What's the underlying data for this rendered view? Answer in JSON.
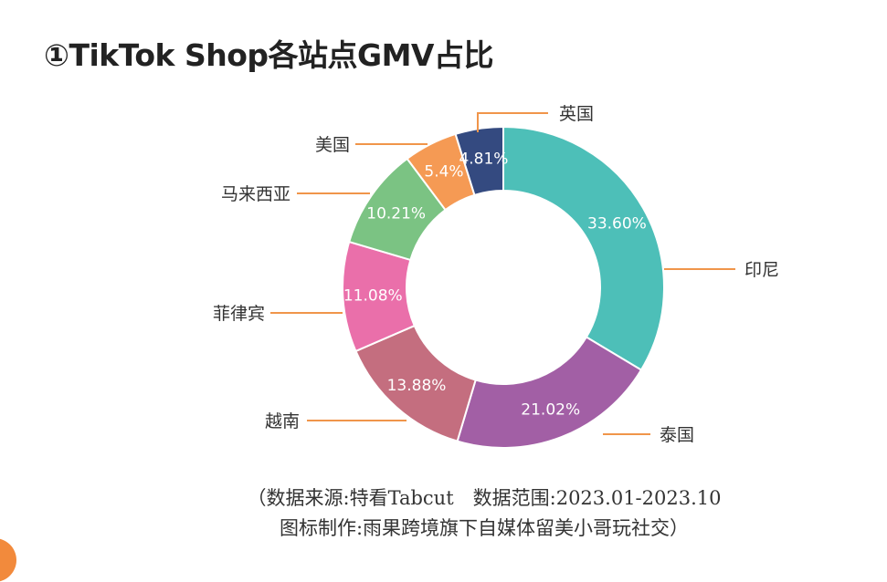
{
  "title": "①TikTok Shop各站点GMV占比",
  "source_line1": "（数据来源:特看Tabcut　数据范围:2023.01-2023.10",
  "source_line2": "图标制作:雨果跨境旗下自媒体留美小哥玩社交）",
  "chart_data": {
    "type": "pie",
    "variant": "donut",
    "title": "①TikTok Shop各站点GMV占比",
    "categories": [
      "印尼",
      "泰国",
      "越南",
      "菲律宾",
      "马来西亚",
      "美国",
      "英国"
    ],
    "values": [
      33.6,
      21.02,
      13.88,
      11.08,
      10.21,
      5.4,
      4.81
    ],
    "labels": [
      "33.60%",
      "21.02%",
      "13.88%",
      "11.08%",
      "10.21%",
      "5.4%",
      "4.81%"
    ],
    "colors": [
      "#4dbfb8",
      "#a25fa5",
      "#c46e7f",
      "#ea6faa",
      "#7bc383",
      "#f59a54",
      "#344a80"
    ],
    "leader_color": "#f0954a",
    "start": "top",
    "direction": "clockwise",
    "legend": "none"
  }
}
